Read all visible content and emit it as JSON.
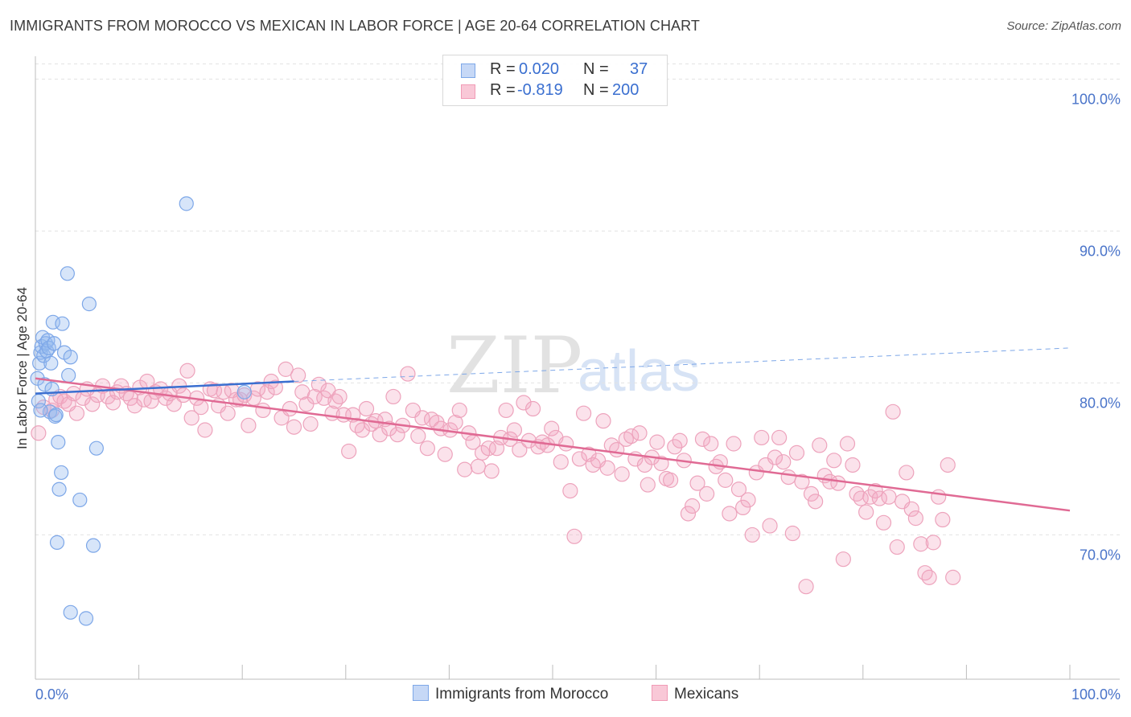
{
  "header": {
    "title": "IMMIGRANTS FROM MOROCCO VS MEXICAN IN LABOR FORCE | AGE 20-64 CORRELATION CHART",
    "source": "Source: ZipAtlas.com"
  },
  "watermark": {
    "zip": "ZIP",
    "atlas": "atlas"
  },
  "legend": {
    "rows": [
      {
        "r_label": "R =",
        "r_value": "0.020",
        "n_label": "N =",
        "n_value": "37",
        "color": "#7da7e8"
      },
      {
        "r_label": "R =",
        "r_value": "-0.819",
        "n_label": "N =",
        "n_value": "200",
        "color": "#f19bb6"
      }
    ]
  },
  "bottom_legend": {
    "items": [
      {
        "label": "Immigrants from Morocco",
        "color": "#7da7e8"
      },
      {
        "label": "Mexicans",
        "color": "#f19bb6"
      }
    ]
  },
  "chart_data": {
    "type": "scatter",
    "title": "IMMIGRANTS FROM MOROCCO VS MEXICAN IN LABOR FORCE | AGE 20-64 CORRELATION CHART",
    "ylabel": "In Labor Force | Age 20-64",
    "xlabel": "",
    "xlim": [
      0,
      100
    ],
    "ylim": [
      60.5,
      101.5
    ],
    "x_tick_labels": [
      "0.0%",
      "100.0%"
    ],
    "y_ticks": [
      70,
      80,
      90,
      100
    ],
    "y_tick_labels": [
      "70.0%",
      "80.0%",
      "90.0%",
      "100.0%"
    ],
    "grid": true,
    "legend_position": "top-center",
    "series": [
      {
        "name": "Immigrants from Morocco",
        "color": "#7da7e8",
        "r": 0.02,
        "n": 37,
        "trend": {
          "x": [
            0,
            25
          ],
          "y": [
            79.3,
            80.1
          ],
          "dashed_to": [
            100,
            82.3
          ]
        },
        "points": [
          [
            0.2,
            80.3
          ],
          [
            0.3,
            78.8
          ],
          [
            0.4,
            81.3
          ],
          [
            0.5,
            82.0
          ],
          [
            0.6,
            82.4
          ],
          [
            0.7,
            83.0
          ],
          [
            0.8,
            81.8
          ],
          [
            0.9,
            79.9
          ],
          [
            1.0,
            82.6
          ],
          [
            1.1,
            82.1
          ],
          [
            1.2,
            82.8
          ],
          [
            1.3,
            82.3
          ],
          [
            1.4,
            78.1
          ],
          [
            1.5,
            81.3
          ],
          [
            1.6,
            79.6
          ],
          [
            1.7,
            84.0
          ],
          [
            1.8,
            82.6
          ],
          [
            1.9,
            77.8
          ],
          [
            2.0,
            77.9
          ],
          [
            2.2,
            76.1
          ],
          [
            2.3,
            73.0
          ],
          [
            2.5,
            74.1
          ],
          [
            2.6,
            83.9
          ],
          [
            2.8,
            82.0
          ],
          [
            3.1,
            87.2
          ],
          [
            3.2,
            80.5
          ],
          [
            3.4,
            81.7
          ],
          [
            2.1,
            69.5
          ],
          [
            3.4,
            64.9
          ],
          [
            4.3,
            72.3
          ],
          [
            4.9,
            64.5
          ],
          [
            5.2,
            85.2
          ],
          [
            5.6,
            69.3
          ],
          [
            5.9,
            75.7
          ],
          [
            14.6,
            91.8
          ],
          [
            20.2,
            79.4
          ],
          [
            0.5,
            78.2
          ]
        ]
      },
      {
        "name": "Mexicans",
        "color": "#f19bb6",
        "r": -0.819,
        "n": 200,
        "trend": {
          "x": [
            0,
            100
          ],
          "y": [
            80.3,
            71.6
          ]
        },
        "points": [
          [
            0.3,
            76.7
          ],
          [
            0.8,
            78.4
          ],
          [
            1.6,
            78.2
          ],
          [
            2.0,
            78.9
          ],
          [
            2.4,
            79.1
          ],
          [
            2.8,
            78.8
          ],
          [
            3.2,
            78.6
          ],
          [
            3.7,
            79.3
          ],
          [
            4.0,
            78.0
          ],
          [
            4.6,
            79.0
          ],
          [
            5.0,
            79.6
          ],
          [
            5.5,
            78.6
          ],
          [
            6.0,
            79.2
          ],
          [
            6.5,
            79.8
          ],
          [
            7.0,
            79.1
          ],
          [
            7.5,
            78.7
          ],
          [
            7.9,
            79.4
          ],
          [
            8.3,
            79.8
          ],
          [
            8.8,
            79.3
          ],
          [
            9.2,
            79.0
          ],
          [
            9.6,
            78.5
          ],
          [
            10.1,
            79.7
          ],
          [
            10.5,
            78.9
          ],
          [
            10.8,
            80.1
          ],
          [
            11.2,
            78.8
          ],
          [
            11.6,
            79.4
          ],
          [
            12.1,
            79.6
          ],
          [
            12.6,
            79.0
          ],
          [
            13.0,
            79.3
          ],
          [
            13.4,
            78.6
          ],
          [
            13.9,
            79.8
          ],
          [
            14.3,
            79.2
          ],
          [
            14.7,
            80.8
          ],
          [
            15.1,
            77.7
          ],
          [
            15.6,
            79.0
          ],
          [
            16.0,
            78.4
          ],
          [
            16.4,
            76.9
          ],
          [
            16.9,
            79.6
          ],
          [
            17.3,
            79.5
          ],
          [
            17.7,
            78.5
          ],
          [
            18.2,
            79.4
          ],
          [
            18.6,
            78.0
          ],
          [
            19.0,
            79.5
          ],
          [
            19.4,
            78.9
          ],
          [
            19.8,
            78.9
          ],
          [
            20.2,
            79.2
          ],
          [
            20.6,
            77.2
          ],
          [
            21.1,
            79.0
          ],
          [
            21.5,
            79.6
          ],
          [
            22.0,
            78.2
          ],
          [
            22.4,
            79.4
          ],
          [
            22.8,
            80.1
          ],
          [
            23.2,
            79.7
          ],
          [
            23.8,
            77.7
          ],
          [
            24.2,
            80.9
          ],
          [
            24.6,
            78.3
          ],
          [
            25.0,
            77.1
          ],
          [
            25.4,
            80.5
          ],
          [
            25.8,
            79.4
          ],
          [
            26.2,
            78.6
          ],
          [
            26.6,
            77.3
          ],
          [
            27.0,
            79.1
          ],
          [
            27.4,
            79.9
          ],
          [
            27.9,
            79.0
          ],
          [
            28.3,
            79.5
          ],
          [
            28.7,
            78.0
          ],
          [
            29.0,
            78.8
          ],
          [
            29.4,
            79.1
          ],
          [
            29.8,
            77.9
          ],
          [
            30.3,
            75.5
          ],
          [
            30.7,
            77.9
          ],
          [
            31.1,
            77.2
          ],
          [
            31.6,
            76.9
          ],
          [
            32.0,
            78.3
          ],
          [
            32.5,
            77.3
          ],
          [
            32.9,
            77.5
          ],
          [
            33.3,
            76.6
          ],
          [
            33.8,
            77.6
          ],
          [
            34.2,
            77.0
          ],
          [
            34.6,
            79.1
          ],
          [
            35.0,
            76.6
          ],
          [
            35.5,
            77.2
          ],
          [
            36.0,
            80.6
          ],
          [
            36.5,
            78.2
          ],
          [
            37.0,
            76.5
          ],
          [
            37.4,
            77.7
          ],
          [
            37.9,
            75.7
          ],
          [
            38.3,
            77.6
          ],
          [
            38.8,
            77.4
          ],
          [
            39.2,
            77.0
          ],
          [
            39.6,
            75.3
          ],
          [
            40.1,
            76.9
          ],
          [
            40.6,
            77.4
          ],
          [
            41.0,
            78.2
          ],
          [
            41.5,
            74.3
          ],
          [
            41.9,
            76.7
          ],
          [
            42.3,
            76.1
          ],
          [
            42.8,
            74.5
          ],
          [
            43.2,
            75.4
          ],
          [
            43.8,
            75.7
          ],
          [
            44.1,
            74.2
          ],
          [
            44.6,
            75.7
          ],
          [
            45.0,
            76.4
          ],
          [
            45.5,
            78.2
          ],
          [
            45.9,
            76.3
          ],
          [
            46.3,
            76.9
          ],
          [
            46.8,
            75.6
          ],
          [
            47.2,
            78.7
          ],
          [
            47.7,
            76.2
          ],
          [
            48.1,
            78.3
          ],
          [
            48.6,
            75.8
          ],
          [
            49.0,
            76.1
          ],
          [
            49.5,
            75.9
          ],
          [
            49.9,
            77.0
          ],
          [
            50.3,
            76.4
          ],
          [
            50.8,
            74.8
          ],
          [
            51.3,
            76.0
          ],
          [
            51.7,
            72.9
          ],
          [
            52.1,
            69.9
          ],
          [
            52.6,
            75.0
          ],
          [
            53.0,
            78.0
          ],
          [
            53.5,
            75.3
          ],
          [
            53.9,
            74.6
          ],
          [
            54.4,
            74.9
          ],
          [
            54.9,
            77.5
          ],
          [
            55.3,
            74.4
          ],
          [
            55.7,
            75.9
          ],
          [
            56.2,
            75.6
          ],
          [
            56.7,
            74.0
          ],
          [
            57.1,
            76.3
          ],
          [
            57.6,
            76.5
          ],
          [
            58.0,
            75.0
          ],
          [
            58.4,
            76.7
          ],
          [
            58.9,
            74.6
          ],
          [
            59.2,
            73.3
          ],
          [
            59.6,
            75.1
          ],
          [
            60.1,
            76.1
          ],
          [
            60.5,
            74.7
          ],
          [
            61.0,
            73.7
          ],
          [
            61.4,
            73.6
          ],
          [
            61.8,
            75.8
          ],
          [
            62.3,
            76.2
          ],
          [
            62.7,
            74.9
          ],
          [
            63.1,
            71.4
          ],
          [
            63.5,
            71.9
          ],
          [
            64.0,
            73.4
          ],
          [
            64.5,
            76.3
          ],
          [
            64.9,
            72.7
          ],
          [
            65.3,
            76.0
          ],
          [
            65.8,
            74.5
          ],
          [
            66.2,
            74.8
          ],
          [
            66.7,
            73.6
          ],
          [
            67.1,
            71.4
          ],
          [
            67.5,
            76.0
          ],
          [
            68.0,
            73.0
          ],
          [
            68.4,
            71.8
          ],
          [
            68.9,
            72.3
          ],
          [
            69.3,
            70.0
          ],
          [
            69.7,
            74.1
          ],
          [
            70.2,
            76.4
          ],
          [
            70.6,
            74.6
          ],
          [
            71.0,
            70.6
          ],
          [
            71.5,
            75.1
          ],
          [
            71.9,
            76.4
          ],
          [
            72.3,
            74.8
          ],
          [
            72.8,
            73.8
          ],
          [
            73.2,
            70.1
          ],
          [
            73.6,
            75.4
          ],
          [
            74.1,
            73.5
          ],
          [
            74.5,
            66.6
          ],
          [
            75.0,
            72.7
          ],
          [
            75.4,
            72.2
          ],
          [
            75.8,
            75.9
          ],
          [
            76.3,
            73.9
          ],
          [
            76.8,
            73.5
          ],
          [
            77.2,
            74.9
          ],
          [
            77.6,
            73.4
          ],
          [
            78.1,
            68.4
          ],
          [
            78.5,
            76.0
          ],
          [
            79.0,
            74.6
          ],
          [
            79.4,
            72.7
          ],
          [
            79.8,
            72.4
          ],
          [
            80.3,
            71.5
          ],
          [
            80.7,
            72.5
          ],
          [
            81.2,
            72.9
          ],
          [
            81.6,
            72.4
          ],
          [
            82.0,
            70.8
          ],
          [
            82.5,
            72.5
          ],
          [
            82.9,
            78.1
          ],
          [
            83.3,
            69.2
          ],
          [
            83.8,
            72.2
          ],
          [
            84.2,
            74.1
          ],
          [
            84.7,
            71.7
          ],
          [
            85.1,
            71.1
          ],
          [
            85.6,
            69.4
          ],
          [
            86.0,
            67.5
          ],
          [
            86.4,
            67.2
          ],
          [
            86.8,
            69.5
          ],
          [
            87.3,
            72.5
          ],
          [
            87.7,
            71.0
          ],
          [
            88.2,
            74.6
          ],
          [
            88.7,
            67.2
          ]
        ]
      }
    ]
  }
}
